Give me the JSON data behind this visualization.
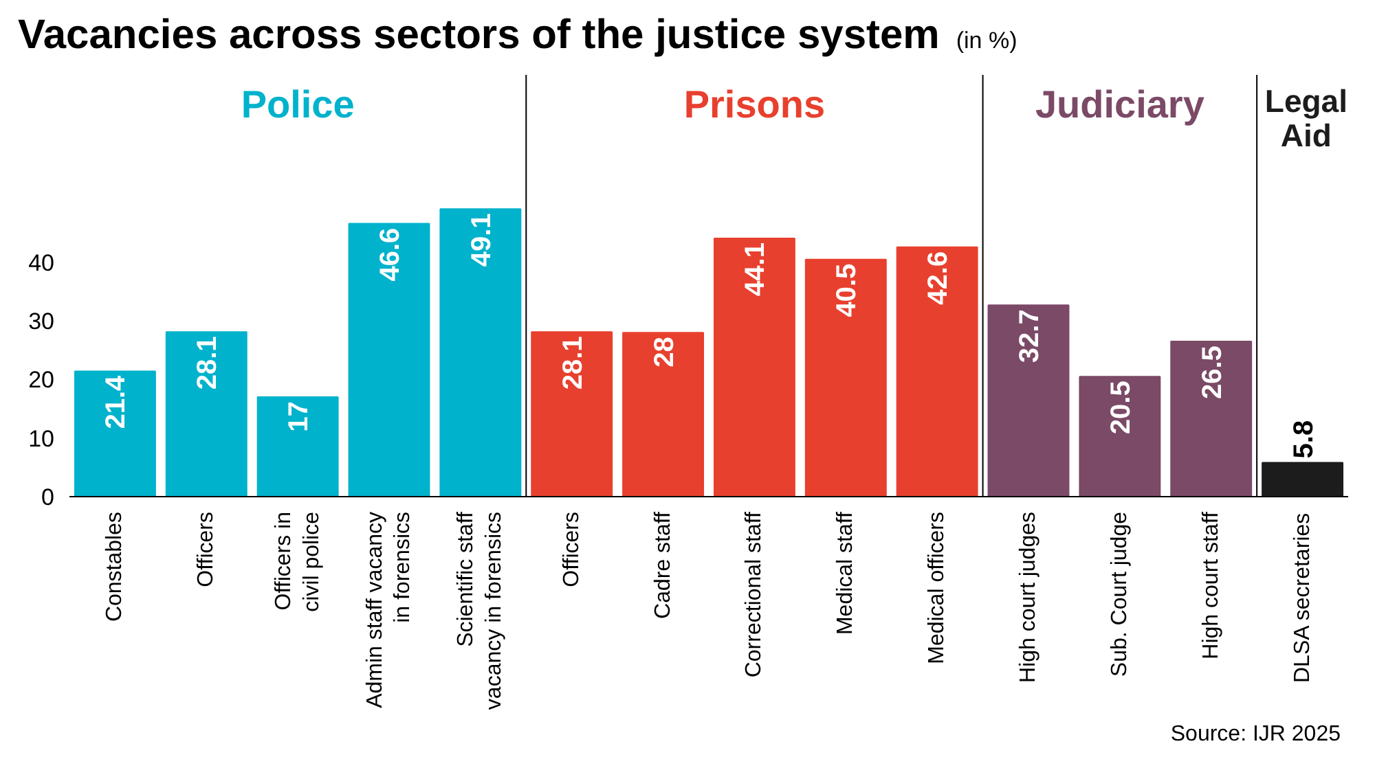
{
  "chart_data": {
    "type": "bar",
    "title": "Vacancies across sectors of the justice system",
    "subtitle": "(in %)",
    "categories": [
      "Constables",
      "Officers",
      "Officers in civil police",
      "Admin staff vacancy in forensics",
      "Scientific staff vacancy in forensics",
      "Officers",
      "Cadre staff",
      "Correctional staff",
      "Medical staff",
      "Medical officers",
      "High court judges",
      "Sub. Court judge",
      "High court staff",
      "DLSA secretaries"
    ],
    "series": [
      {
        "name": "Police",
        "color": "#00b2cc",
        "values": [
          21.4,
          28.1,
          17,
          46.6,
          49.1,
          null,
          null,
          null,
          null,
          null,
          null,
          null,
          null,
          null
        ]
      },
      {
        "name": "Prisons",
        "color": "#e8402e",
        "values": [
          null,
          null,
          null,
          null,
          null,
          28.1,
          28,
          44.1,
          40.5,
          42.6,
          null,
          null,
          null,
          null
        ]
      },
      {
        "name": "Judiciary",
        "color": "#7b4a66",
        "values": [
          null,
          null,
          null,
          null,
          null,
          null,
          null,
          null,
          null,
          null,
          32.7,
          20.5,
          26.5,
          null
        ]
      },
      {
        "name": "Legal Aid",
        "color": "#1c1c1c",
        "values": [
          null,
          null,
          null,
          null,
          null,
          null,
          null,
          null,
          null,
          null,
          null,
          null,
          null,
          5.8
        ]
      }
    ],
    "ylim": [
      0,
      72
    ],
    "yticks": [
      0,
      10,
      20,
      30,
      40
    ],
    "data_labels": true,
    "annotations": [
      "Source: IJR 2025"
    ]
  }
}
